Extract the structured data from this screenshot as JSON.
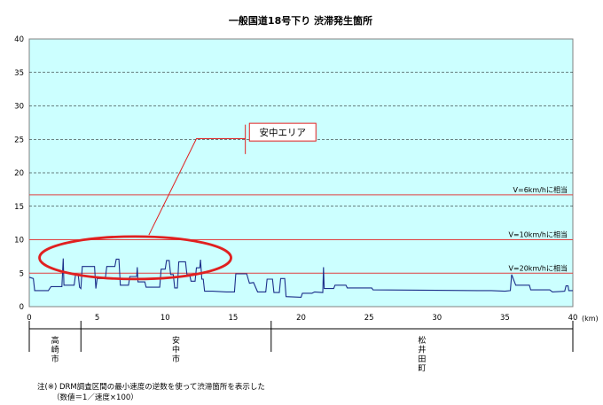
{
  "chart_data": {
    "type": "line",
    "title": "一般国道18号下り 渋滞発生箇所",
    "xlabel": "(km)",
    "ylabel": "",
    "xlim": [
      0,
      40
    ],
    "ylim": [
      0,
      40
    ],
    "x_ticks": [
      0,
      5,
      10,
      15,
      20,
      25,
      30,
      35,
      40
    ],
    "y_ticks": [
      0,
      5,
      10,
      15,
      20,
      25,
      30,
      35,
      40
    ],
    "grid": true,
    "plot_background": "#ccffff",
    "reference_lines": [
      {
        "label": "V=6km/hに相当",
        "y": 16.7,
        "color": "#e04040"
      },
      {
        "label": "V=10km/hに相当",
        "y": 10,
        "color": "#e04040"
      },
      {
        "label": "V=20km/hに相当",
        "y": 5,
        "color": "#e04040"
      }
    ],
    "series": [
      {
        "color": "#1c2f8a",
        "points": [
          [
            0,
            4.4
          ],
          [
            0.3,
            4.2
          ],
          [
            0.4,
            2.4
          ],
          [
            1.4,
            2.4
          ],
          [
            1.6,
            3
          ],
          [
            2.4,
            3
          ],
          [
            2.5,
            7.2
          ],
          [
            2.55,
            3.2
          ],
          [
            3.3,
            3.2
          ],
          [
            3.4,
            4.7
          ],
          [
            3.6,
            4.8
          ],
          [
            3.7,
            2.9
          ],
          [
            3.8,
            2.7
          ],
          [
            3.9,
            6
          ],
          [
            4.8,
            6
          ],
          [
            4.9,
            2.7
          ],
          [
            5,
            4.2
          ],
          [
            5.6,
            4.2
          ],
          [
            5.7,
            6
          ],
          [
            6.3,
            6
          ],
          [
            6.4,
            7.1
          ],
          [
            6.6,
            7.1
          ],
          [
            6.7,
            3.2
          ],
          [
            7.3,
            3.2
          ],
          [
            7.4,
            4.5
          ],
          [
            7.9,
            4.5
          ],
          [
            7.95,
            5.9
          ],
          [
            8,
            3.7
          ],
          [
            8.5,
            3.7
          ],
          [
            8.6,
            2.9
          ],
          [
            9.6,
            2.9
          ],
          [
            9.7,
            5.6
          ],
          [
            10,
            5.6
          ],
          [
            10.1,
            6.9
          ],
          [
            10.3,
            6.9
          ],
          [
            10.4,
            4.8
          ],
          [
            10.6,
            4.8
          ],
          [
            10.7,
            2.8
          ],
          [
            10.9,
            2.8
          ],
          [
            11,
            6.7
          ],
          [
            11.5,
            6.7
          ],
          [
            11.6,
            4.8
          ],
          [
            11.8,
            4.8
          ],
          [
            11.9,
            3.8
          ],
          [
            12.2,
            3.8
          ],
          [
            12.3,
            5.8
          ],
          [
            12.55,
            5.8
          ],
          [
            12.6,
            7
          ],
          [
            12.7,
            4.1
          ],
          [
            12.8,
            4.1
          ],
          [
            12.9,
            2.3
          ],
          [
            13.5,
            2.3
          ],
          [
            14.5,
            2.2
          ],
          [
            15.1,
            2.2
          ],
          [
            15.2,
            4.9
          ],
          [
            16,
            4.9
          ],
          [
            16.2,
            3.5
          ],
          [
            16.5,
            3.6
          ],
          [
            16.8,
            2.2
          ],
          [
            17.4,
            2.2
          ],
          [
            17.5,
            4.1
          ],
          [
            17.9,
            4.1
          ],
          [
            18,
            2.1
          ],
          [
            18.4,
            2.1
          ],
          [
            18.5,
            4.2
          ],
          [
            18.8,
            4.2
          ],
          [
            18.9,
            1.5
          ],
          [
            20,
            1.4
          ],
          [
            20.1,
            2
          ],
          [
            20.8,
            2
          ],
          [
            21,
            2.2
          ],
          [
            21.6,
            2.1
          ],
          [
            21.65,
            5.9
          ],
          [
            21.7,
            2.7
          ],
          [
            22.4,
            2.7
          ],
          [
            22.5,
            3.2
          ],
          [
            23.3,
            3.2
          ],
          [
            23.4,
            2.8
          ],
          [
            25.2,
            2.8
          ],
          [
            25.3,
            2.5
          ],
          [
            33,
            2.4
          ],
          [
            34,
            2.4
          ],
          [
            35,
            2.3
          ],
          [
            35.4,
            2.4
          ],
          [
            35.5,
            4.8
          ],
          [
            35.8,
            3.2
          ],
          [
            36.3,
            3.2
          ],
          [
            36.8,
            3.2
          ],
          [
            36.9,
            2.5
          ],
          [
            37.7,
            2.5
          ],
          [
            38.3,
            2.5
          ],
          [
            38.5,
            2.2
          ],
          [
            39.4,
            2.3
          ],
          [
            39.5,
            3.1
          ],
          [
            39.65,
            3.1
          ],
          [
            39.7,
            2.4
          ],
          [
            40,
            2.4
          ]
        ]
      }
    ],
    "annotation": {
      "label": "安中エリア"
    },
    "sections": [
      {
        "label": "高崎市",
        "chars": [
          "高",
          "崎",
          "市"
        ],
        "from": 0,
        "to": 3.8
      },
      {
        "label": "安中市",
        "chars": [
          "安",
          "中",
          "市"
        ],
        "from": 3.8,
        "to": 17.8
      },
      {
        "label": "松井田町",
        "chars": [
          "松",
          "井",
          "田",
          "町"
        ],
        "from": 17.8,
        "to": 40
      }
    ],
    "notes": [
      "注(※) DRM調査区間の最小速度の逆数を使って渋滞箇所を表示した",
      "（数値＝1／速度×100）"
    ]
  }
}
